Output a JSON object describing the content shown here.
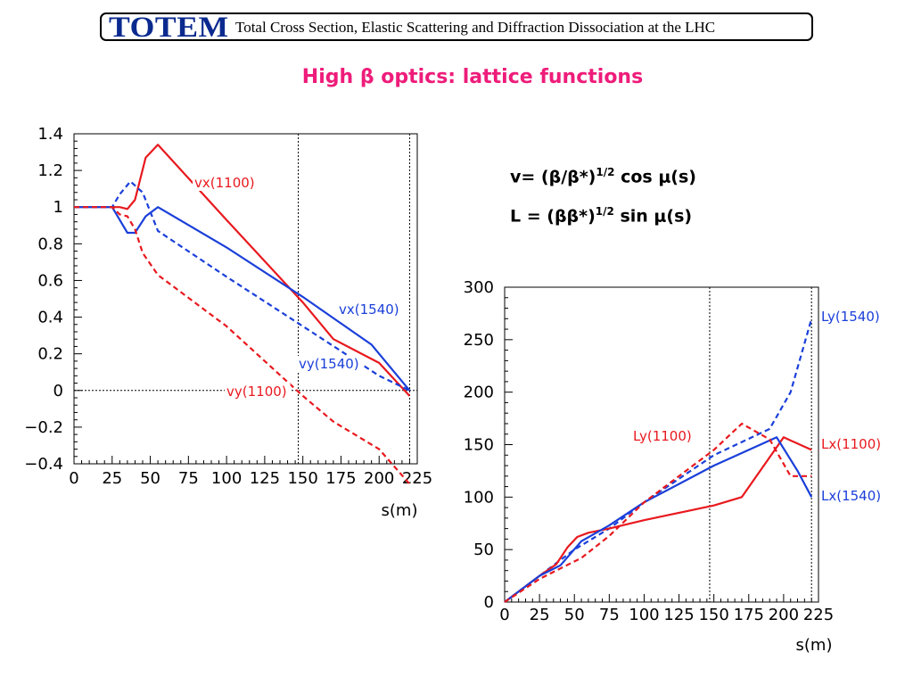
{
  "header": {
    "logo": "TOTEM",
    "subtitle": "Total Cross Section, Elastic Scattering and Diffraction Dissociation at the LHC"
  },
  "title": "High β optics: lattice functions",
  "formulas": [
    {
      "lhs": "v= (β/β*)",
      "sup": "1/2",
      "rhs": " cos μ(s)"
    },
    {
      "lhs": "L = (ββ*)",
      "sup": "1/2",
      "rhs": " sin μ(s)"
    }
  ],
  "chart_data": [
    {
      "type": "line",
      "xlabel": "s(m)",
      "ylabel": "",
      "xlim": [
        0,
        225
      ],
      "ylim": [
        -0.4,
        1.4
      ],
      "xticks": [
        "0",
        "25",
        "50",
        "75",
        "100",
        "125",
        "150",
        "175",
        "200",
        "225"
      ],
      "yticks": [
        "−0.4",
        "−0.2",
        "0",
        "0.2",
        "0.4",
        "0.6",
        "0.8",
        "1",
        "1.2",
        "1.4"
      ],
      "ytick_values": [
        -0.4,
        -0.2,
        0,
        0.2,
        0.4,
        0.6,
        0.8,
        1,
        1.2,
        1.4
      ],
      "vlines": [
        147,
        220
      ],
      "hline": 0,
      "series": [
        {
          "name": "vx(1100)",
          "color": "#e8191e",
          "dash": false,
          "x": [
            0,
            25,
            30,
            35,
            40,
            47,
            55,
            100,
            150,
            170,
            200,
            220
          ],
          "y": [
            1,
            1,
            1.0,
            0.99,
            1.04,
            1.27,
            1.34,
            0.93,
            0.48,
            0.28,
            0.15,
            -0.03
          ]
        },
        {
          "name": "vx(1540)",
          "color": "#1a3fd9",
          "dash": false,
          "x": [
            0,
            25,
            30,
            35,
            40,
            47,
            55,
            100,
            150,
            195,
            220
          ],
          "y": [
            1,
            1,
            0.93,
            0.86,
            0.86,
            0.95,
            1.0,
            0.78,
            0.51,
            0.25,
            0.0
          ]
        },
        {
          "name": "vy(1540)",
          "color": "#1a3fd9",
          "dash": true,
          "x": [
            0,
            25,
            30,
            37,
            45,
            55,
            100,
            150,
            200,
            220
          ],
          "y": [
            1,
            1,
            1.07,
            1.14,
            1.08,
            0.87,
            0.62,
            0.35,
            0.08,
            0.0
          ]
        },
        {
          "name": "vy(1100)",
          "color": "#e8191e",
          "dash": true,
          "x": [
            0,
            25,
            30,
            35,
            40,
            45,
            55,
            100,
            150,
            170,
            200,
            220
          ],
          "y": [
            1,
            1,
            0.96,
            0.95,
            0.88,
            0.75,
            0.63,
            0.35,
            -0.03,
            -0.17,
            -0.32,
            -0.51
          ]
        }
      ]
    },
    {
      "type": "line",
      "xlabel": "s(m)",
      "ylabel": "",
      "xlim": [
        0,
        225
      ],
      "ylim": [
        0,
        300
      ],
      "xticks": [
        "0",
        "25",
        "50",
        "75",
        "100",
        "125",
        "150",
        "175",
        "200",
        "225"
      ],
      "yticks": [
        "0",
        "50",
        "100",
        "150",
        "200",
        "250",
        "300"
      ],
      "ytick_values": [
        0,
        50,
        100,
        150,
        200,
        250,
        300
      ],
      "vlines": [
        147,
        220
      ],
      "series": [
        {
          "name": "Ly(1540)",
          "color": "#1a3fd9",
          "dash": true,
          "x": [
            0,
            25,
            40,
            50,
            75,
            100,
            150,
            190,
            205,
            220
          ],
          "y": [
            0,
            25,
            40,
            50,
            70,
            95,
            140,
            165,
            200,
            270
          ]
        },
        {
          "name": "Lx(1100)",
          "color": "#e8191e",
          "dash": false,
          "x": [
            0,
            25,
            37,
            45,
            52,
            60,
            75,
            100,
            150,
            170,
            200,
            220
          ],
          "y": [
            0,
            25,
            36,
            52,
            62,
            66,
            70,
            78,
            92,
            100,
            157,
            145
          ]
        },
        {
          "name": "Lx(1540)",
          "color": "#1a3fd9",
          "dash": false,
          "x": [
            0,
            25,
            40,
            55,
            75,
            100,
            150,
            195,
            210,
            220
          ],
          "y": [
            0,
            25,
            35,
            58,
            73,
            95,
            130,
            157,
            125,
            100
          ]
        },
        {
          "name": "Ly(1100)",
          "color": "#e8191e",
          "dash": true,
          "x": [
            0,
            25,
            40,
            55,
            75,
            100,
            150,
            170,
            190,
            205,
            220
          ],
          "y": [
            0,
            22,
            32,
            42,
            63,
            95,
            145,
            170,
            155,
            120,
            120
          ]
        }
      ]
    }
  ]
}
